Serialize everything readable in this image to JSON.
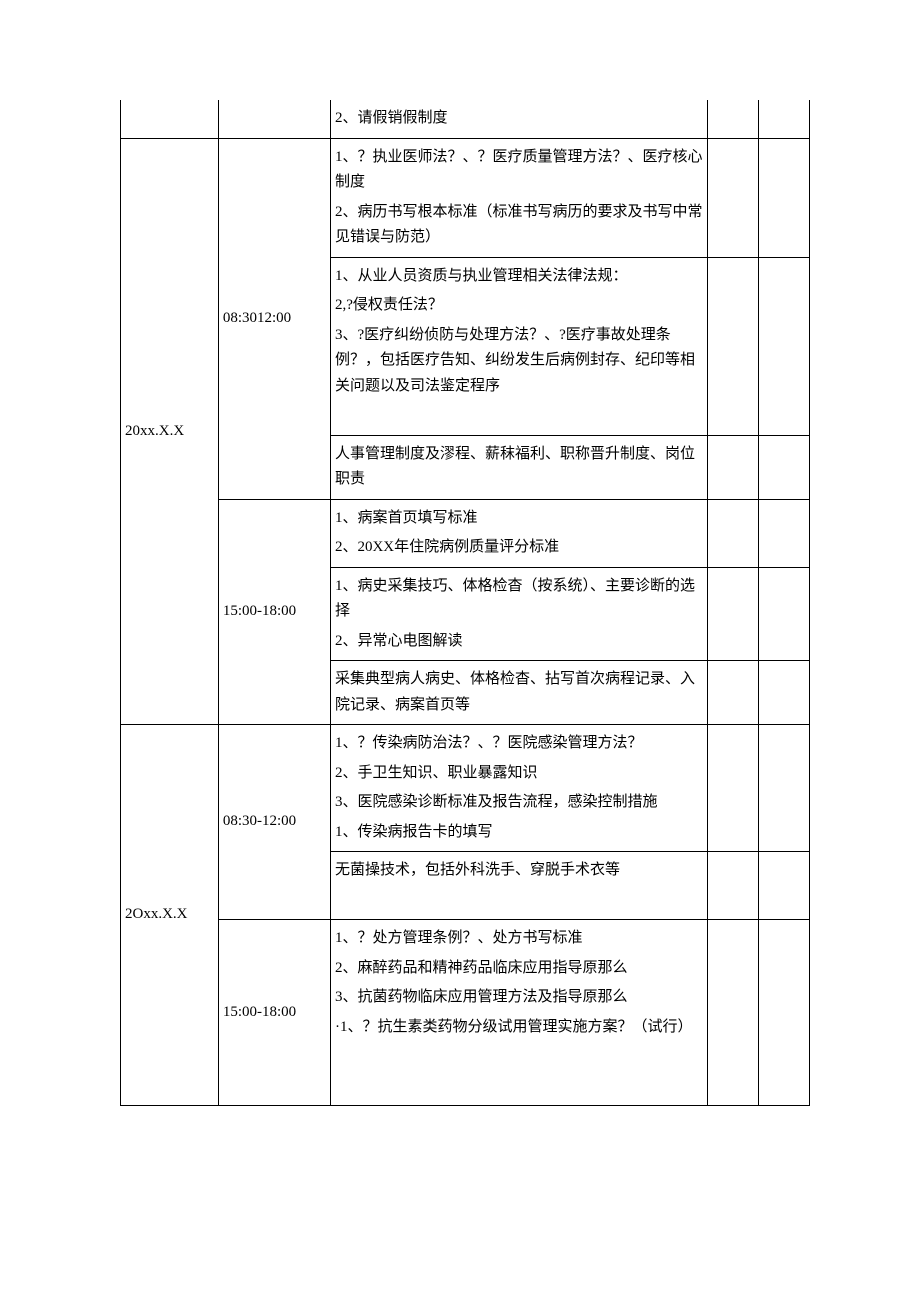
{
  "table": {
    "row0": {
      "content_a": "2、请假销假制度"
    },
    "row1": {
      "date": "20xx.X.X",
      "time_am": "08:3012:00",
      "am_block1_l1": "1、？执业医师法？、？医疗质量管理方法？、医疗核心制度",
      "am_block1_l2": "2、病历书写根本标准（标准书写病历的要求及书写中常见错误与防范）",
      "am_block2_l1": "1、从业人员资质与执业管理相关法律法规：",
      "am_block2_l2": "2,?侵权责任法？",
      "am_block2_l3": "3、?医疗纠纷侦防与处理方法？、?医疗事故处理条例？，包括医疗告知、纠纷发生后病例封存、纪印等相关问题以及司法鉴定程序",
      "am_block3": "人事管理制度及漻程、薪秣福利、职称晋升制度、岗位职责",
      "time_pm": "15:00-18:00",
      "pm_block1_l1": "1、病案首页填写标准",
      "pm_block1_l2": "2、20XX年住院病例质量评分标准",
      "pm_block2_l1": "1、病史采集技巧、体格检杳（按系统）、主要诊断的选择",
      "pm_block2_l2": "2、异常心电图解读",
      "pm_block3": "采集典型病人病史、体格检杳、拈写首次病程记录、入院记录、病案首页等"
    },
    "row2": {
      "date": "2Oxx.X.X",
      "time_am": "08:30-12:00",
      "am_block1_l1": "1、？传染病防治法？、？医院感染管理方法？",
      "am_block1_l2": "2、手卫生知识、职业暴露知识",
      "am_block1_l3": "3、医院感染诊断标准及报告流程，感染控制措施",
      "am_block1_l4": "1、传染病报告卡的填写",
      "am_block2": "无菌操技术，包括外科洗手、穿脱手术衣等",
      "time_pm": "15:00-18:00",
      "pm_block1_l1": "1、？处方管理条例？、处方书写标准",
      "pm_block1_l2": "2、麻醉药品和精神药品临床应用指导原那么",
      "pm_block1_l3": "3、抗菌药物临床应用管理方法及指导原那么",
      "pm_block1_l4": "·1、？抗生素类药物分级试用管理实施方案？（试行）"
    }
  }
}
